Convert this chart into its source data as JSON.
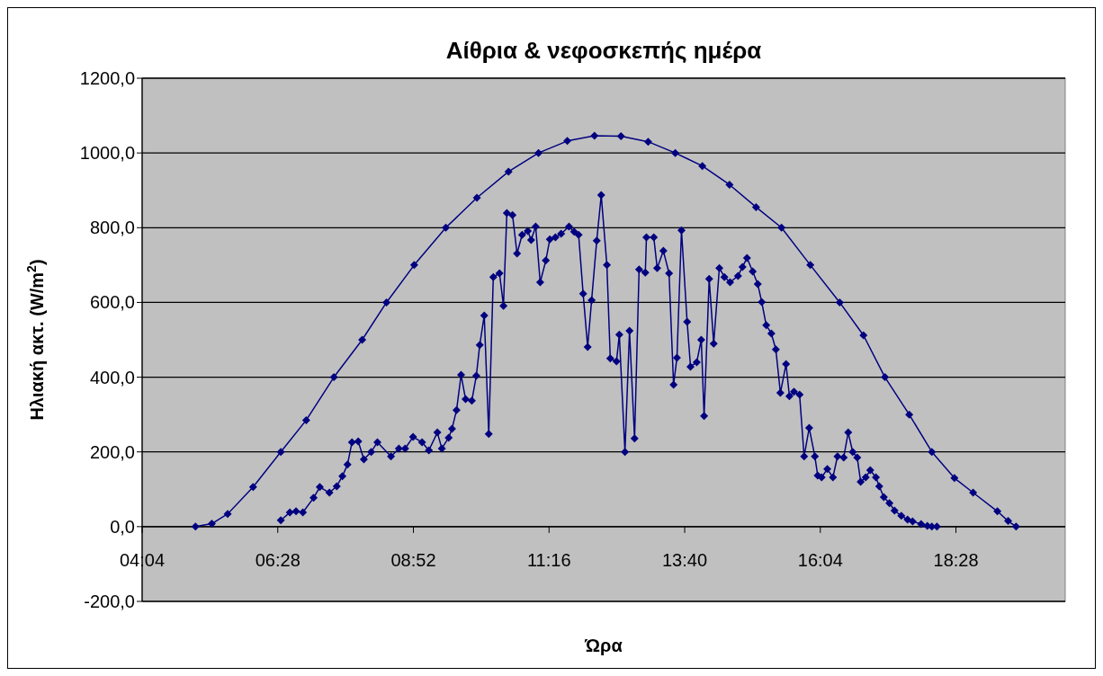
{
  "chart_data": {
    "type": "line",
    "title": "Αίθρια & νεφοσκεπής ημέρα",
    "xlabel": "Ώρα",
    "ylabel": "Ηλιακή ακτ. (W/m$^{2}$)",
    "xlim": [
      4.0667,
      20.4
    ],
    "xticks": [
      {
        "value": 4.0667,
        "label": "04:04"
      },
      {
        "value": 6.4667,
        "label": "06:28"
      },
      {
        "value": 8.8667,
        "label": "08:52"
      },
      {
        "value": 11.2667,
        "label": "11:16"
      },
      {
        "value": 13.6667,
        "label": "13:40"
      },
      {
        "value": 16.0667,
        "label": "16:04"
      },
      {
        "value": 18.4667,
        "label": "18:28"
      }
    ],
    "ylim": [
      -200,
      1200
    ],
    "yticks": [
      {
        "value": -200,
        "label": "-200,0"
      },
      {
        "value": 0,
        "label": "0,0"
      },
      {
        "value": 200,
        "label": "200,0"
      },
      {
        "value": 400,
        "label": "400,0"
      },
      {
        "value": 600,
        "label": "600,0"
      },
      {
        "value": 800,
        "label": "800,0"
      },
      {
        "value": 1000,
        "label": "1000,0"
      },
      {
        "value": 1200,
        "label": "1200,0"
      }
    ],
    "grid": "y",
    "marker": "diamond",
    "line_style": "solid",
    "series": [
      {
        "color": "#000080",
        "x": [
          5.01,
          5.3,
          5.58,
          6.03,
          6.52,
          6.97,
          7.46,
          7.96,
          8.39,
          8.88,
          9.44,
          9.99,
          10.55,
          11.08,
          11.59,
          12.07,
          12.54,
          13.02,
          13.5,
          13.98,
          14.46,
          14.93,
          15.38,
          15.89,
          16.41,
          16.83,
          17.21,
          17.64,
          18.04,
          18.44,
          18.77,
          19.2,
          19.39,
          19.53
        ],
        "values": [
          0,
          8,
          34,
          106,
          200,
          285,
          400,
          500,
          600,
          700,
          800,
          880,
          950,
          1000,
          1032,
          1046,
          1045,
          1030,
          1000,
          965,
          915,
          855,
          800,
          700,
          600,
          512,
          400,
          300,
          200,
          130,
          91,
          41,
          15,
          0
        ]
      },
      {
        "color": "#000080",
        "x": [
          6.52,
          6.68,
          6.79,
          6.91,
          7.1,
          7.21,
          7.38,
          7.51,
          7.61,
          7.7,
          7.78,
          7.89,
          7.99,
          8.12,
          8.23,
          8.47,
          8.61,
          8.72,
          8.86,
          9.02,
          9.14,
          9.29,
          9.37,
          9.49,
          9.55,
          9.63,
          9.71,
          9.79,
          9.9,
          9.98,
          10.04,
          10.12,
          10.2,
          10.28,
          10.39,
          10.46,
          10.52,
          10.62,
          10.7,
          10.79,
          10.89,
          10.95,
          11.03,
          11.11,
          11.21,
          11.28,
          11.38,
          11.48,
          11.62,
          11.71,
          11.79,
          11.87,
          11.95,
          12.02,
          12.11,
          12.19,
          12.29,
          12.35,
          12.46,
          12.51,
          12.61,
          12.69,
          12.78,
          12.86,
          12.97,
          12.99,
          13.12,
          13.18,
          13.29,
          13.39,
          13.47,
          13.53,
          13.61,
          13.71,
          13.77,
          13.88,
          13.96,
          14.01,
          14.1,
          14.18,
          14.28,
          14.37,
          14.47,
          14.61,
          14.69,
          14.77,
          14.87,
          14.96,
          15.03,
          15.11,
          15.2,
          15.28,
          15.36,
          15.46,
          15.52,
          15.6,
          15.7,
          15.78,
          15.87,
          15.97,
          16.02,
          16.09,
          16.19,
          16.29,
          16.37,
          16.48,
          16.56,
          16.64,
          16.72,
          16.78,
          16.87,
          16.95,
          17.05,
          17.11,
          17.19,
          17.29,
          17.38,
          17.5,
          17.61,
          17.7,
          17.85,
          17.96,
          18.04,
          18.13
        ],
        "values": [
          17,
          38,
          41,
          38,
          77,
          106,
          91,
          108,
          135,
          166,
          226,
          228,
          180,
          200,
          226,
          188,
          209,
          209,
          240,
          226,
          204,
          252,
          209,
          238,
          262,
          312,
          406,
          341,
          337,
          404,
          486,
          565,
          248,
          668,
          678,
          591,
          839,
          834,
          731,
          781,
          791,
          767,
          803,
          654,
          712,
          769,
          774,
          784,
          803,
          789,
          781,
          623,
          481,
          606,
          765,
          887,
          700,
          450,
          442,
          514,
          200,
          524,
          236,
          688,
          680,
          774,
          774,
          692,
          738,
          678,
          380,
          452,
          793,
          548,
          428,
          440,
          500,
          296,
          663,
          490,
          692,
          668,
          654,
          671,
          695,
          719,
          683,
          649,
          601,
          539,
          517,
          474,
          358,
          435,
          349,
          361,
          353,
          188,
          264,
          188,
          137,
          132,
          154,
          132,
          188,
          185,
          252,
          200,
          185,
          120,
          132,
          151,
          132,
          108,
          79,
          63,
          43,
          29,
          19,
          14,
          7,
          2,
          0,
          0
        ]
      }
    ]
  }
}
